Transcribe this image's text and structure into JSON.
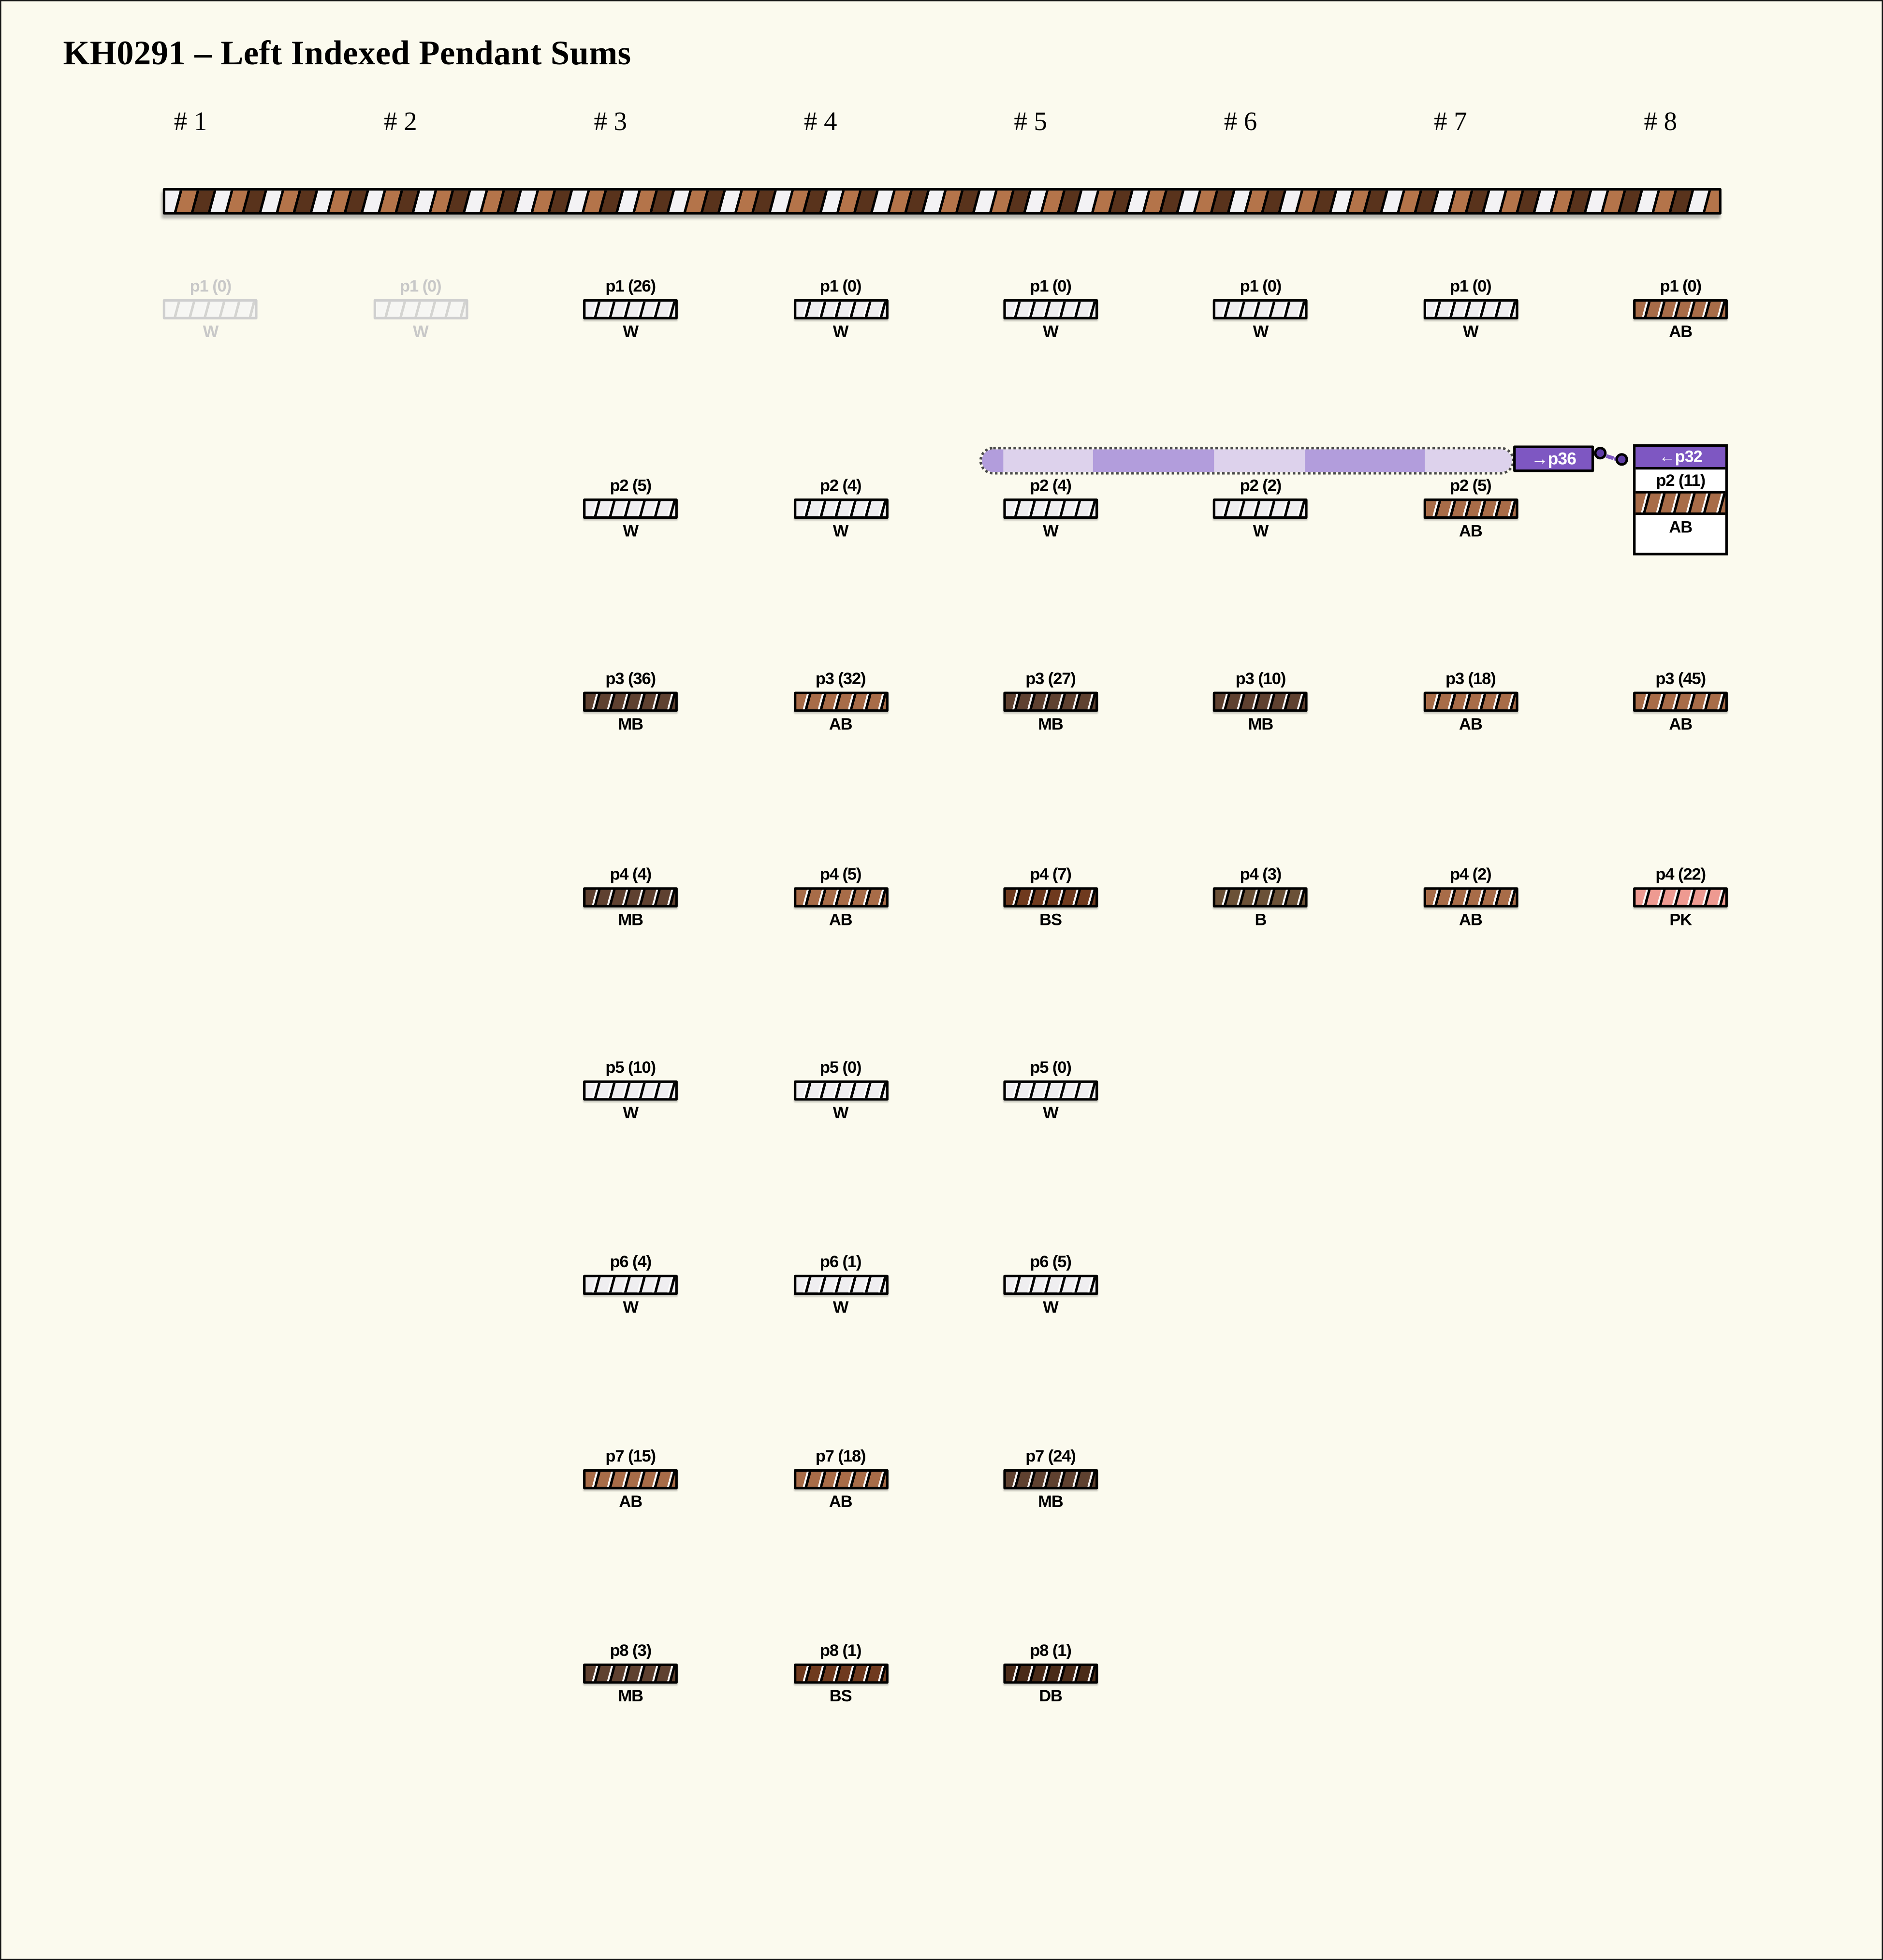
{
  "title": "KH0291 – Left Indexed Pendant Sums",
  "columns": [
    "# 1",
    "# 2",
    "# 3",
    "# 4",
    "# 5",
    "# 6",
    "# 7",
    "# 8"
  ],
  "colors": {
    "background": "#fbfaee",
    "primary_cord_white": "#f3f2f4",
    "primary_cord_medium_brown": "#b4744a",
    "primary_cord_dark_brown": "#59331c"
  },
  "color_codes": {
    "W": "#efeef0",
    "AB": "#a86c48",
    "MB": "#5f4130",
    "B": "#6b5137",
    "BS": "#6f3a1e",
    "DB": "#4a2b18",
    "PK": "#ee9a91"
  },
  "highlight": {
    "tag_out": "→p36",
    "tag_in": "←p32",
    "tones": {
      "light": "#ddd2ec",
      "mid": "#b29ddc",
      "tag": "#7e57c2",
      "dot": "#5f3da6"
    },
    "band_segments": [
      {
        "tone": "mid",
        "w": 17
      },
      {
        "tone": "light",
        "w": 71
      },
      {
        "tone": "mid",
        "w": 96
      },
      {
        "tone": "light",
        "w": 72
      },
      {
        "tone": "mid",
        "w": 95
      },
      {
        "tone": "light",
        "w": 69
      }
    ]
  },
  "cells": [
    {
      "row": 1,
      "col": 1,
      "label": "p1 (0)",
      "code": "W",
      "state": "faded"
    },
    {
      "row": 1,
      "col": 2,
      "label": "p1 (0)",
      "code": "W",
      "state": "faded"
    },
    {
      "row": 1,
      "col": 3,
      "label": "p1 (26)",
      "code": "W",
      "state": "normal"
    },
    {
      "row": 1,
      "col": 4,
      "label": "p1 (0)",
      "code": "W",
      "state": "normal"
    },
    {
      "row": 1,
      "col": 5,
      "label": "p1 (0)",
      "code": "W",
      "state": "normal"
    },
    {
      "row": 1,
      "col": 6,
      "label": "p1 (0)",
      "code": "W",
      "state": "normal"
    },
    {
      "row": 1,
      "col": 7,
      "label": "p1 (0)",
      "code": "W",
      "state": "normal"
    },
    {
      "row": 1,
      "col": 8,
      "label": "p1 (0)",
      "code": "AB",
      "state": "normal"
    },
    {
      "row": 2,
      "col": 3,
      "label": "p2 (5)",
      "code": "W",
      "state": "normal"
    },
    {
      "row": 2,
      "col": 4,
      "label": "p2 (4)",
      "code": "W",
      "state": "normal"
    },
    {
      "row": 2,
      "col": 5,
      "label": "p2 (4)",
      "code": "W",
      "state": "normal"
    },
    {
      "row": 2,
      "col": 6,
      "label": "p2 (2)",
      "code": "W",
      "state": "normal"
    },
    {
      "row": 2,
      "col": 7,
      "label": "p2 (5)",
      "code": "AB",
      "state": "normal"
    },
    {
      "row": 2,
      "col": 8,
      "label": "p2 (11)",
      "code": "AB",
      "state": "selected"
    },
    {
      "row": 3,
      "col": 3,
      "label": "p3 (36)",
      "code": "MB",
      "state": "normal"
    },
    {
      "row": 3,
      "col": 4,
      "label": "p3 (32)",
      "code": "AB",
      "state": "normal"
    },
    {
      "row": 3,
      "col": 5,
      "label": "p3 (27)",
      "code": "MB",
      "state": "normal"
    },
    {
      "row": 3,
      "col": 6,
      "label": "p3 (10)",
      "code": "MB",
      "state": "normal"
    },
    {
      "row": 3,
      "col": 7,
      "label": "p3 (18)",
      "code": "AB",
      "state": "normal"
    },
    {
      "row": 3,
      "col": 8,
      "label": "p3 (45)",
      "code": "AB",
      "state": "normal"
    },
    {
      "row": 4,
      "col": 3,
      "label": "p4 (4)",
      "code": "MB",
      "state": "normal"
    },
    {
      "row": 4,
      "col": 4,
      "label": "p4 (5)",
      "code": "AB",
      "state": "normal"
    },
    {
      "row": 4,
      "col": 5,
      "label": "p4 (7)",
      "code": "BS",
      "state": "normal"
    },
    {
      "row": 4,
      "col": 6,
      "label": "p4 (3)",
      "code": "B",
      "state": "normal"
    },
    {
      "row": 4,
      "col": 7,
      "label": "p4 (2)",
      "code": "AB",
      "state": "normal"
    },
    {
      "row": 4,
      "col": 8,
      "label": "p4 (22)",
      "code": "PK",
      "state": "normal"
    },
    {
      "row": 5,
      "col": 3,
      "label": "p5 (10)",
      "code": "W",
      "state": "normal"
    },
    {
      "row": 5,
      "col": 4,
      "label": "p5 (0)",
      "code": "W",
      "state": "normal"
    },
    {
      "row": 5,
      "col": 5,
      "label": "p5 (0)",
      "code": "W",
      "state": "normal"
    },
    {
      "row": 6,
      "col": 3,
      "label": "p6 (4)",
      "code": "W",
      "state": "normal"
    },
    {
      "row": 6,
      "col": 4,
      "label": "p6 (1)",
      "code": "W",
      "state": "normal"
    },
    {
      "row": 6,
      "col": 5,
      "label": "p6 (5)",
      "code": "W",
      "state": "normal"
    },
    {
      "row": 7,
      "col": 3,
      "label": "p7 (15)",
      "code": "AB",
      "state": "normal"
    },
    {
      "row": 7,
      "col": 4,
      "label": "p7 (18)",
      "code": "AB",
      "state": "normal"
    },
    {
      "row": 7,
      "col": 5,
      "label": "p7 (24)",
      "code": "MB",
      "state": "normal"
    },
    {
      "row": 8,
      "col": 3,
      "label": "p8 (3)",
      "code": "MB",
      "state": "normal"
    },
    {
      "row": 8,
      "col": 4,
      "label": "p8 (1)",
      "code": "BS",
      "state": "normal"
    },
    {
      "row": 8,
      "col": 5,
      "label": "p8 (1)",
      "code": "DB",
      "state": "normal"
    }
  ]
}
